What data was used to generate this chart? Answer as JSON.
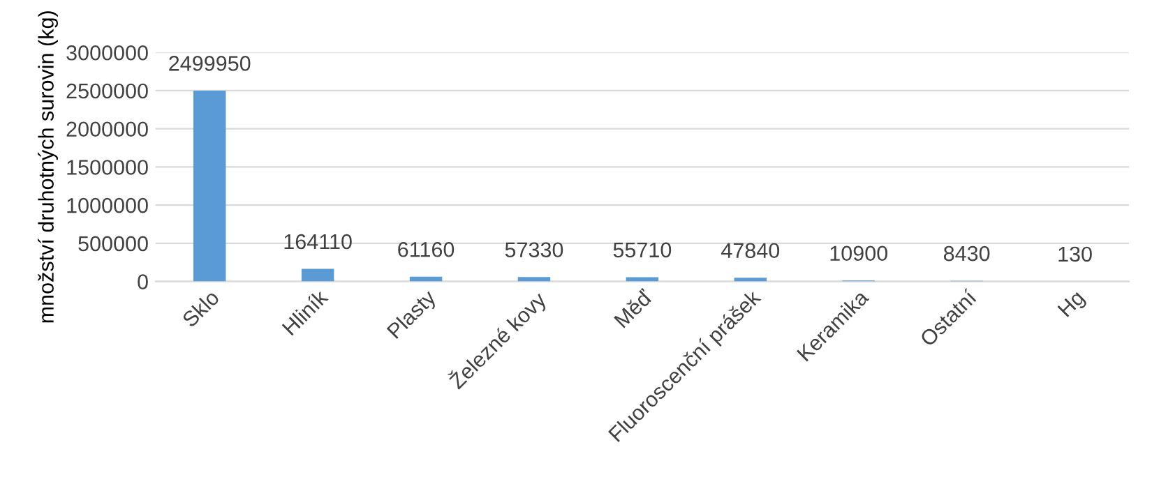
{
  "chart_data": {
    "type": "bar",
    "ylabel": "množství druhotných surovin (kg)",
    "categories": [
      "Sklo",
      "Hliník",
      "Plasty",
      "Železné kovy",
      "Měď",
      "Fluoroscenční prášek",
      "Keramika",
      "Ostatní",
      "Hg"
    ],
    "values": [
      2499950,
      164110,
      61160,
      57330,
      55710,
      47840,
      10900,
      8430,
      130
    ],
    "color": "#5b9bd5",
    "ylim": [
      0,
      3000000
    ],
    "yticks": [
      0,
      500000,
      1000000,
      1500000,
      2000000,
      2500000,
      3000000
    ],
    "grid": "y",
    "data_labels": true
  }
}
